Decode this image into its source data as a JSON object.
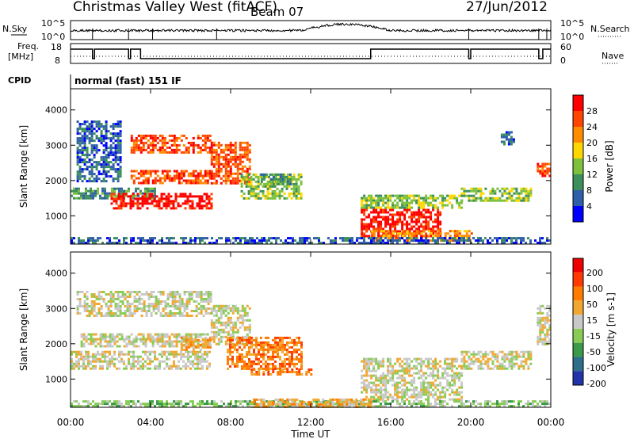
{
  "header": {
    "station_title": "Christmas Valley West (fitACF)",
    "beam": "Beam 07",
    "date": "27/Jun/2012"
  },
  "strips": {
    "nsky_label": "N.Sky",
    "nsearch_label": "N.Search",
    "nsky_ticks": [
      "10^5",
      "10^0"
    ],
    "nsearch_ticks": [
      "10^5",
      "10^0"
    ],
    "freq_label_line1": "Freq.",
    "freq_label_line2": "[MHz]",
    "freq_ticks": [
      "18",
      "8"
    ],
    "nave_label": "Nave",
    "nave_ticks": [
      "60",
      "0"
    ],
    "cpid_label": "CPID",
    "cpid_value": "normal (fast) 151 IF"
  },
  "colors": {
    "power_scale": [
      "#0000ff",
      "#2e5fa8",
      "#3c8f5a",
      "#7cc03c",
      "#ffd700",
      "#ff8c00",
      "#ff4500",
      "#ff0000"
    ],
    "velocity_scale": [
      "#2233aa",
      "#2e6e8a",
      "#3a9a4a",
      "#88cc55",
      "#c8c8c8",
      "#f0a830",
      "#ff7a00",
      "#ff3a00",
      "#ee0000"
    ]
  },
  "chart_data": [
    {
      "type": "heatmap",
      "panel": "power",
      "ylabel": "Slant Range [km]",
      "yticks": [
        "1000",
        "2000",
        "3000",
        "4000"
      ],
      "ylim": [
        200,
        4600
      ],
      "xlim": [
        0,
        24
      ],
      "colorbar_label": "Power [dB]",
      "colorbar_ticks": [
        "4",
        "8",
        "12",
        "16",
        "20",
        "24",
        "28"
      ],
      "bands": [
        {
          "t0": 0.0,
          "t1": 4.2,
          "r0": 1500,
          "r1": 1800,
          "level": 2
        },
        {
          "t0": 2.0,
          "t1": 7.0,
          "r0": 1200,
          "r1": 1650,
          "level": 7
        },
        {
          "t0": 3.0,
          "t1": 7.0,
          "r0": 1900,
          "r1": 2300,
          "level": 6
        },
        {
          "t0": 3.0,
          "t1": 7.0,
          "r0": 2800,
          "r1": 3300,
          "level": 6
        },
        {
          "t0": 0.3,
          "t1": 2.5,
          "r0": 2000,
          "r1": 3700,
          "level": 1
        },
        {
          "t0": 7.0,
          "t1": 9.0,
          "r0": 1900,
          "r1": 3100,
          "level": 6
        },
        {
          "t0": 8.5,
          "t1": 11.5,
          "r0": 1500,
          "r1": 2200,
          "level": 3
        },
        {
          "t0": 9.5,
          "t1": 11.0,
          "r0": 1900,
          "r1": 2200,
          "level": 2
        },
        {
          "t0": 14.5,
          "t1": 18.5,
          "r0": 400,
          "r1": 1200,
          "level": 7
        },
        {
          "t0": 14.5,
          "t1": 19.5,
          "r0": 1200,
          "r1": 1600,
          "level": 3
        },
        {
          "t0": 15.0,
          "t1": 20.0,
          "r0": 300,
          "r1": 600,
          "level": 5
        },
        {
          "t0": 19.5,
          "t1": 23.0,
          "r0": 1400,
          "r1": 1800,
          "level": 3
        },
        {
          "t0": 23.3,
          "t1": 23.9,
          "r0": 2100,
          "r1": 2500,
          "level": 6
        },
        {
          "t0": 21.5,
          "t1": 22.1,
          "r0": 3000,
          "r1": 3400,
          "level": 1
        },
        {
          "t0": 0.0,
          "t1": 24.0,
          "r0": 200,
          "r1": 400,
          "level": 1
        }
      ]
    },
    {
      "type": "heatmap",
      "panel": "velocity",
      "ylabel": "Slant Range [km]",
      "yticks": [
        "1000",
        "2000",
        "3000",
        "4000"
      ],
      "ylim": [
        200,
        4600
      ],
      "xlim": [
        0,
        24
      ],
      "xlabel": "Time UT",
      "xticks": [
        "00:00",
        "04:00",
        "08:00",
        "12:00",
        "16:00",
        "20:00",
        "00:00"
      ],
      "colorbar_label": "Velocity [m s-1]",
      "colorbar_ticks": [
        "200",
        "100",
        "50",
        "15",
        "-15",
        "-50",
        "-100",
        "-200"
      ],
      "bands": [
        {
          "t0": 0.0,
          "t1": 7.0,
          "r0": 1300,
          "r1": 1800,
          "level": 4
        },
        {
          "t0": 0.5,
          "t1": 7.0,
          "r0": 1900,
          "r1": 2300,
          "level": 4
        },
        {
          "t0": 0.3,
          "t1": 7.0,
          "r0": 2800,
          "r1": 3500,
          "level": 4
        },
        {
          "t0": 5.5,
          "t1": 7.0,
          "r0": 1800,
          "r1": 2200,
          "level": 5
        },
        {
          "t0": 7.0,
          "t1": 9.0,
          "r0": 2000,
          "r1": 3100,
          "level": 4
        },
        {
          "t0": 7.8,
          "t1": 11.5,
          "r0": 1300,
          "r1": 2200,
          "level": 6
        },
        {
          "t0": 9.0,
          "t1": 12.0,
          "r0": 1100,
          "r1": 1300,
          "level": 6
        },
        {
          "t0": 14.5,
          "t1": 19.5,
          "r0": 400,
          "r1": 1600,
          "level": 4
        },
        {
          "t0": 19.5,
          "t1": 23.0,
          "r0": 1300,
          "r1": 1800,
          "level": 4
        },
        {
          "t0": 23.3,
          "t1": 23.9,
          "r0": 2000,
          "r1": 3100,
          "level": 4
        },
        {
          "t0": 0.0,
          "t1": 24.0,
          "r0": 200,
          "r1": 400,
          "level": 3
        },
        {
          "t0": 9.0,
          "t1": 15.0,
          "r0": 200,
          "r1": 450,
          "level": 5
        }
      ]
    }
  ]
}
